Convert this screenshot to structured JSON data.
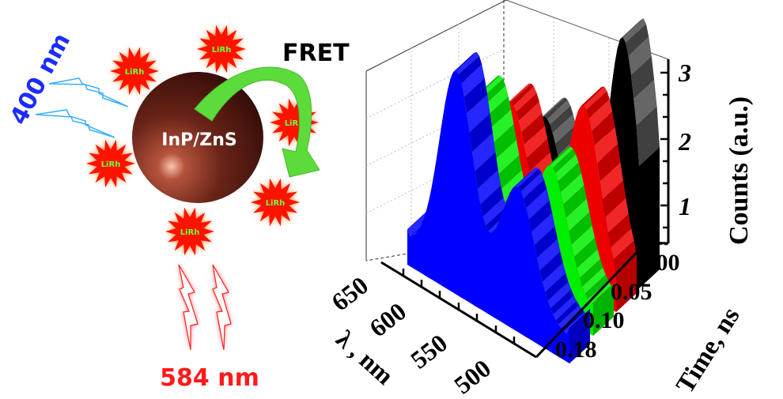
{
  "schematic": {
    "excitation_label": "400 nm",
    "core_label": "InP/ZnS",
    "transfer_label": "FRET",
    "emission_label": "584 nm",
    "acceptor_label": "LiRh",
    "colors": {
      "excitation": "#1a2cff",
      "emission": "#ff1a1a",
      "arrow": "#5cdc3a",
      "acceptor_text": "#6cff3a",
      "star": "#ff1200"
    }
  },
  "plot": {
    "x_axis_title": "λ , nm",
    "x_ticks": [
      "650",
      "600",
      "550",
      "500"
    ],
    "y_axis_title": "Time, ns",
    "y_ticks": [
      "0.00",
      "0.05",
      "0.10",
      "0.18"
    ],
    "z_axis_title": "Counts (a.u.)",
    "z_ticks": [
      "1",
      "2",
      "3"
    ],
    "series_colors": [
      "#0000ff",
      "#00ee00",
      "#ee0000",
      "#000000"
    ]
  }
}
